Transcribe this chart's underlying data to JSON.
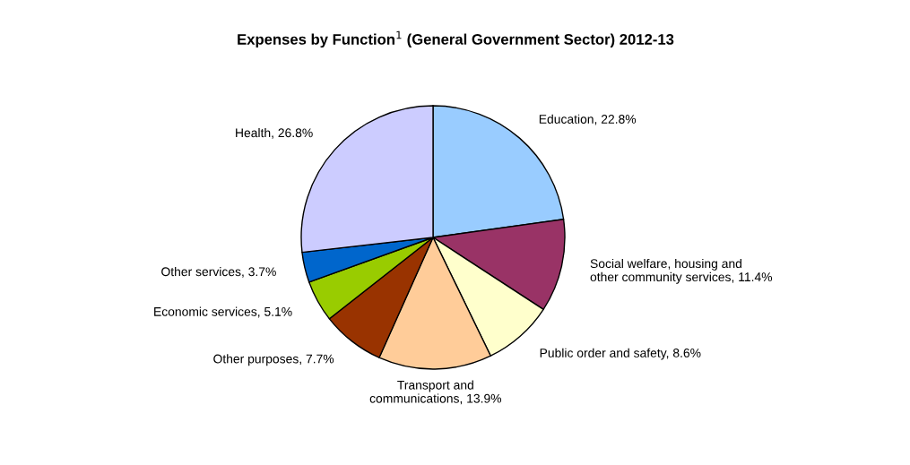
{
  "chart_data": {
    "type": "pie",
    "title": "Expenses by Function$^{1}$ (General Government Sector) 2012-13",
    "categories": [
      "Education",
      "Social welfare, housing and\nother community services",
      "Public order and safety",
      "Transport and\ncommunications",
      "Other purposes",
      "Economic services",
      "Other services",
      "Health"
    ],
    "values": [
      22.8,
      11.4,
      8.6,
      13.9,
      7.7,
      5.1,
      3.7,
      26.8
    ],
    "value_labels": [
      "22.8%",
      "11.4%",
      "8.6%",
      "13.9%",
      "7.7%",
      "5.1%",
      "3.7%",
      "26.8%"
    ],
    "colors": [
      "#99ccff",
      "#993366",
      "#ffffcc",
      "#ffcc99",
      "#993300",
      "#99cc00",
      "#0066cc",
      "#ccccff"
    ]
  }
}
